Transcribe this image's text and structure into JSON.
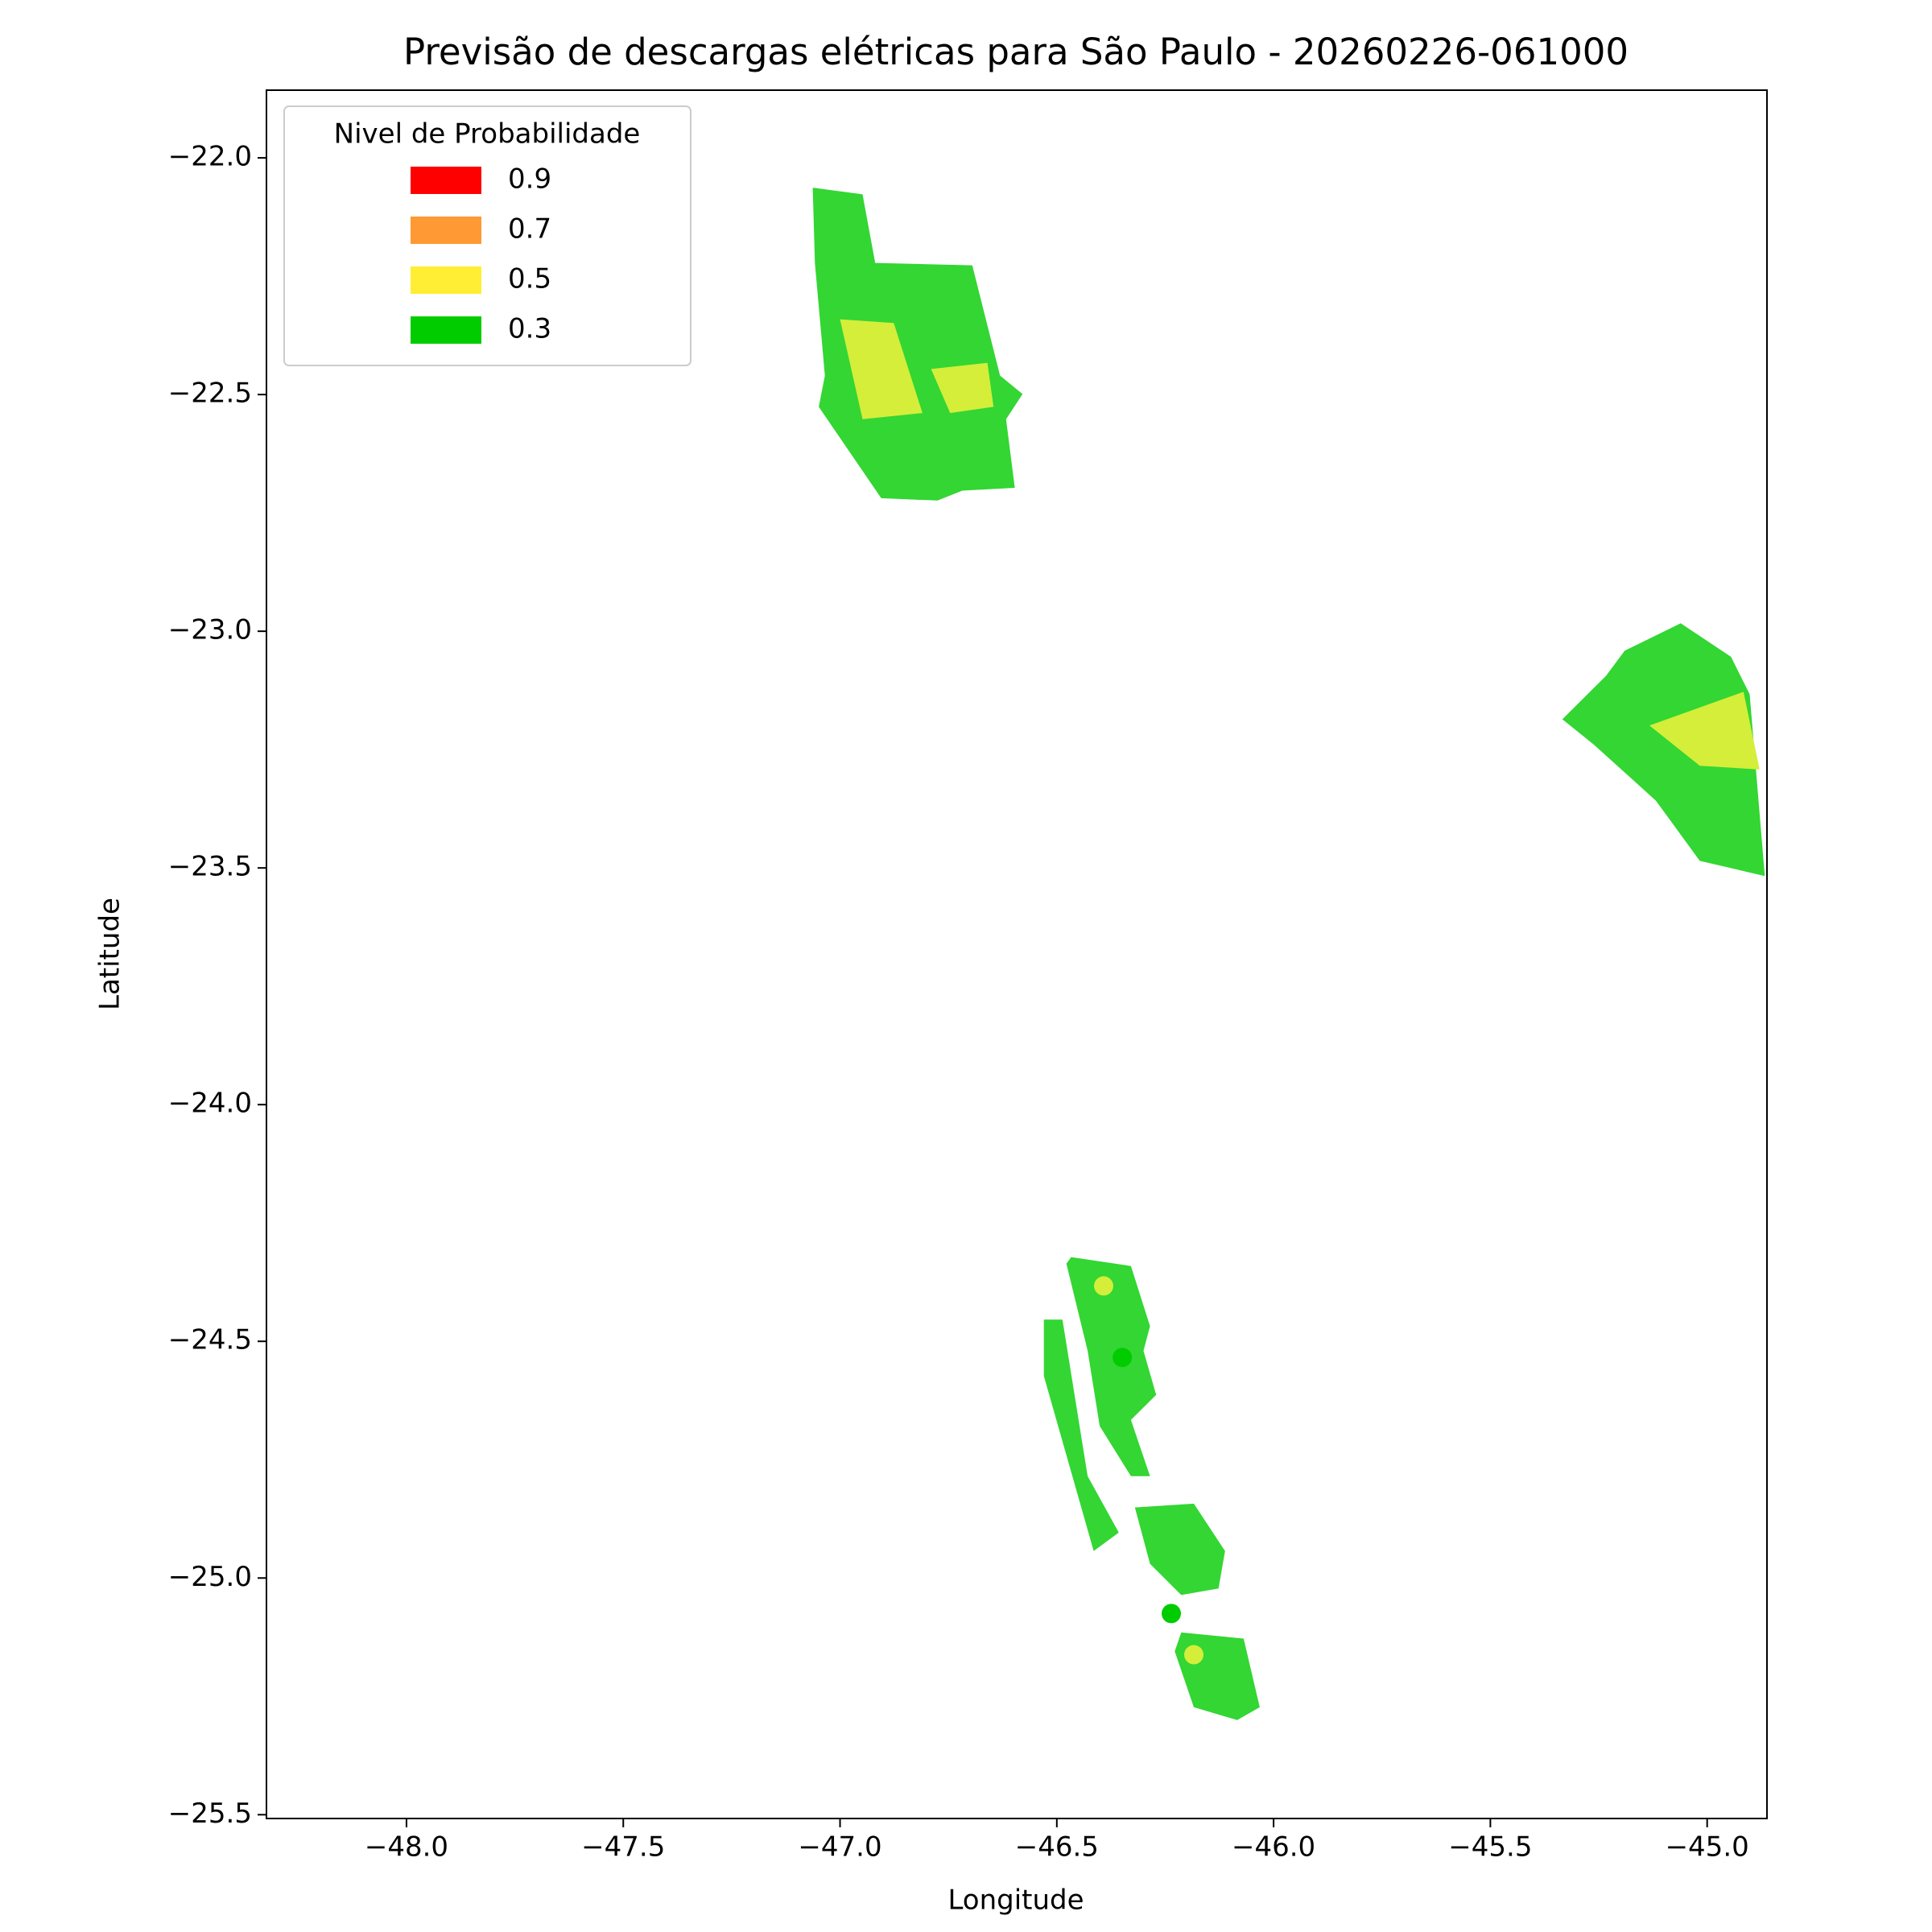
{
  "chart_data": {
    "type": "contour",
    "title": "Previsão de descargas elétricas para São Paulo - 20260226-061000",
    "x_label": "Longitude",
    "y_label": "Latitude",
    "xlim": [
      -48.323,
      -44.862
    ],
    "ylim": [
      -25.508,
      -21.857
    ],
    "xticks": [
      {
        "value": -48.0,
        "label": "−48.0"
      },
      {
        "value": -47.5,
        "label": "−47.5"
      },
      {
        "value": -47.0,
        "label": "−47.0"
      },
      {
        "value": -46.5,
        "label": "−46.5"
      },
      {
        "value": -46.0,
        "label": "−46.0"
      },
      {
        "value": -45.5,
        "label": "−45.5"
      },
      {
        "value": -45.0,
        "label": "−45.0"
      }
    ],
    "yticks": [
      {
        "value": -22.0,
        "label": "−22.0"
      },
      {
        "value": -22.5,
        "label": "−22.5"
      },
      {
        "value": -23.0,
        "label": "−23.0"
      },
      {
        "value": -23.5,
        "label": "−23.5"
      },
      {
        "value": -24.0,
        "label": "−24.0"
      },
      {
        "value": -24.5,
        "label": "−24.5"
      },
      {
        "value": -25.0,
        "label": "−25.0"
      },
      {
        "value": -25.5,
        "label": "−25.5"
      }
    ],
    "legend_title": "Nivel de Probabilidade",
    "legend_position": "upper-left",
    "levels": [
      {
        "name": "0.9",
        "color": "#ff0000"
      },
      {
        "name": "0.7",
        "color": "#ff9933"
      },
      {
        "name": "0.5",
        "color": "#ffee33"
      },
      {
        "name": "0.3",
        "color": "#00cc00"
      }
    ],
    "regions": [
      {
        "color": "#33d633",
        "lon": [
          -47.063,
          -46.948,
          -46.919,
          -46.695,
          -46.631,
          -46.579,
          -46.617,
          -46.597,
          -46.718,
          -46.775,
          -46.905,
          -47.049,
          -47.035,
          -47.058
        ],
        "lat": [
          -22.063,
          -22.077,
          -22.222,
          -22.227,
          -22.46,
          -22.499,
          -22.552,
          -22.697,
          -22.703,
          -22.724,
          -22.719,
          -22.526,
          -22.46,
          -22.222
        ]
      },
      {
        "color": "#d4ee3a",
        "lon": [
          -47.0,
          -46.876,
          -46.81,
          -46.948
        ],
        "lat": [
          -22.341,
          -22.349,
          -22.539,
          -22.552
        ]
      },
      {
        "color": "#d4ee3a",
        "lon": [
          -46.79,
          -46.66,
          -46.646,
          -46.746
        ],
        "lat": [
          -22.446,
          -22.433,
          -22.526,
          -22.539
        ]
      },
      {
        "color": "#33d633",
        "lon": [
          -45.19,
          -45.061,
          -44.945,
          -44.902,
          -44.867,
          -45.017,
          -45.118,
          -45.262,
          -45.334,
          -45.233
        ],
        "lat": [
          -23.041,
          -22.983,
          -23.054,
          -23.133,
          -23.517,
          -23.485,
          -23.358,
          -23.239,
          -23.186,
          -23.094
        ]
      },
      {
        "color": "#d4ee3a",
        "lon": [
          -45.133,
          -44.916,
          -44.879,
          -45.017
        ],
        "lat": [
          -23.199,
          -23.128,
          -23.292,
          -23.284
        ]
      },
      {
        "color": "#33d633",
        "lon": [
          -46.467,
          -46.329,
          -46.285,
          -46.3,
          -46.271,
          -46.329,
          -46.285,
          -46.329,
          -46.401,
          -46.429,
          -46.478
        ],
        "lat": [
          -24.322,
          -24.341,
          -24.468,
          -24.52,
          -24.613,
          -24.666,
          -24.785,
          -24.785,
          -24.679,
          -24.52,
          -24.336
        ]
      },
      {
        "color": "#33d633",
        "lon": [
          -46.53,
          -46.487,
          -46.429,
          -46.357,
          -46.415,
          -46.53
        ],
        "lat": [
          -24.454,
          -24.454,
          -24.785,
          -24.904,
          -24.943,
          -24.573
        ]
      },
      {
        "color": "#33d633",
        "lon": [
          -46.32,
          -46.184,
          -46.112,
          -46.127,
          -46.213,
          -46.285
        ],
        "lat": [
          -24.851,
          -24.843,
          -24.943,
          -25.022,
          -25.036,
          -24.97
        ]
      },
      {
        "color": "#33d633",
        "lon": [
          -46.213,
          -46.069,
          -46.032,
          -46.084,
          -46.184,
          -46.228
        ],
        "lat": [
          -25.115,
          -25.128,
          -25.273,
          -25.3,
          -25.273,
          -25.155
        ]
      }
    ],
    "points": {
      "lon": [
        -46.392,
        -46.349,
        -46.236,
        -46.184
      ],
      "lat": [
        -24.383,
        -24.534,
        -25.075,
        -25.162
      ],
      "colors": [
        "#d4ee3a",
        "#00cc00",
        "#00cc00",
        "#d4ee3a"
      ]
    }
  }
}
